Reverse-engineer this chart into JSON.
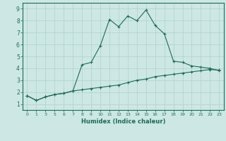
{
  "xlabel": "Humidex (Indice chaleur)",
  "bg_color": "#cde8e4",
  "grid_color": "#b0d0cc",
  "line_color": "#1a6b5a",
  "x_labels": [
    "0",
    "1",
    "3",
    "5",
    "6",
    "7",
    "8",
    "9",
    "10",
    "11",
    "12",
    "13",
    "14",
    "15",
    "16",
    "17",
    "18",
    "19",
    "20",
    "21",
    "22",
    "23"
  ],
  "ylim": [
    0.5,
    9.5
  ],
  "line1_y": [
    1.7,
    1.3,
    1.6,
    1.8,
    1.9,
    2.1,
    4.3,
    4.5,
    5.9,
    8.1,
    7.5,
    8.4,
    8.0,
    8.9,
    7.6,
    6.9,
    4.6,
    4.5,
    4.2,
    4.1,
    4.0,
    3.8
  ],
  "line2_y": [
    1.7,
    1.3,
    1.6,
    1.8,
    1.9,
    2.1,
    2.2,
    2.3,
    2.4,
    2.5,
    2.6,
    2.8,
    3.0,
    3.1,
    3.3,
    3.4,
    3.5,
    3.6,
    3.7,
    3.8,
    3.9,
    3.85
  ],
  "yticks": [
    1,
    2,
    3,
    4,
    5,
    6,
    7,
    8,
    9
  ]
}
